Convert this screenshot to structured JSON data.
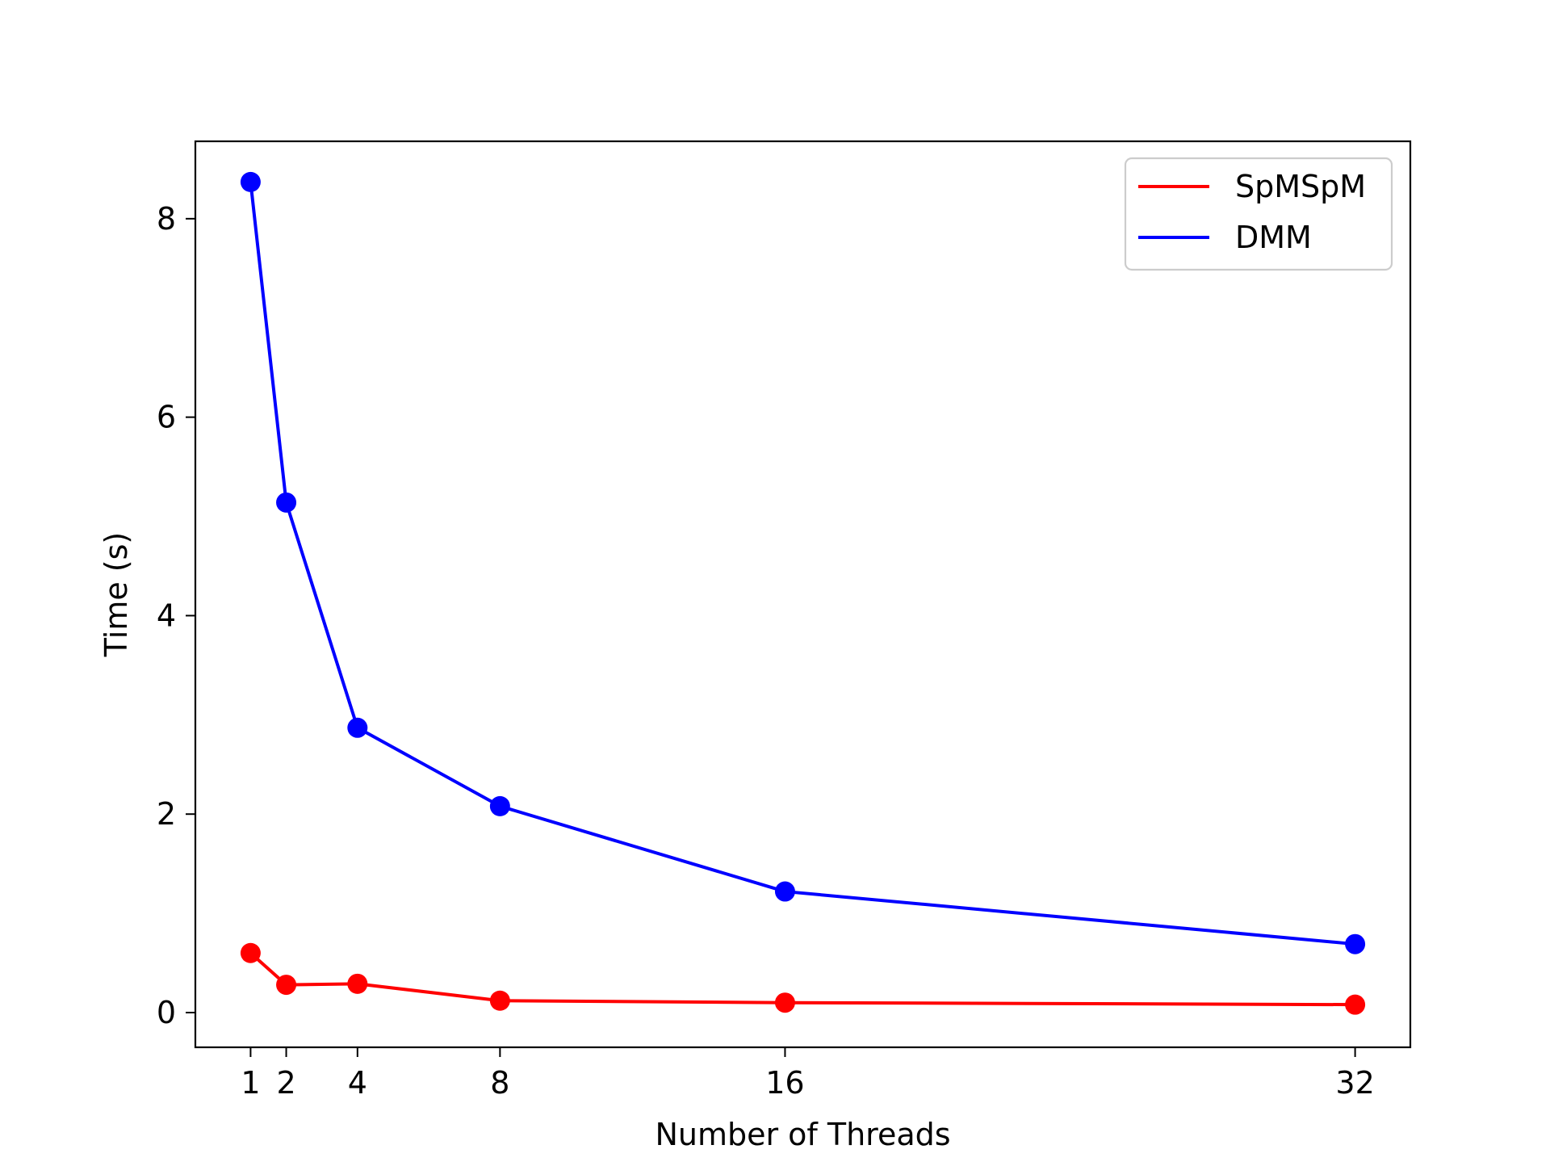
{
  "chart_data": {
    "type": "line",
    "title": "",
    "xlabel": "Number of Threads",
    "ylabel": "Time (s)",
    "xlim": [
      -0.55,
      33.55
    ],
    "ylim": [
      -0.35,
      8.78
    ],
    "x": [
      1,
      2,
      4,
      8,
      16,
      32
    ],
    "x_ticks": [
      1,
      2,
      4,
      8,
      16,
      32
    ],
    "x_tick_labels": [
      "1",
      "2",
      "4",
      "8",
      "16",
      "32"
    ],
    "y_ticks": [
      0,
      2,
      4,
      6,
      8
    ],
    "y_tick_labels": [
      "0",
      "2",
      "4",
      "6",
      "8"
    ],
    "grid": false,
    "legend_position": "top-right",
    "series": [
      {
        "name": "SpMSpM",
        "color": "#ff0000",
        "marker": "circle",
        "values": [
          0.6,
          0.28,
          0.29,
          0.12,
          0.1,
          0.08
        ]
      },
      {
        "name": "DMM",
        "color": "#0000ff",
        "marker": "circle",
        "values": [
          8.37,
          5.14,
          2.87,
          2.08,
          1.22,
          0.69
        ]
      }
    ]
  }
}
